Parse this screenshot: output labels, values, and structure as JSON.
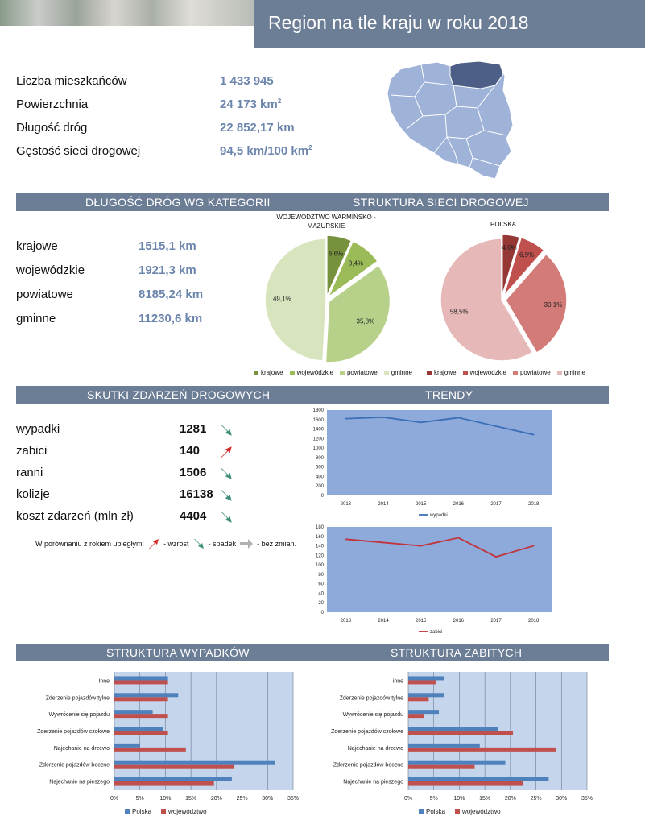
{
  "header": {
    "title": "Region na tle kraju w roku 2018"
  },
  "stats": [
    {
      "label": "Liczba mieszkańców",
      "value": "1 433 945",
      "sup": ""
    },
    {
      "label": "Powierzchnia",
      "value": "24 173 km",
      "sup": "2"
    },
    {
      "label": "Długość dróg",
      "value": "22 852,17 km",
      "sup": ""
    },
    {
      "label": "Gęstość sieci drogowej",
      "value": "94,5 km/100 km",
      "sup": "2"
    }
  ],
  "sections": {
    "roads_by_category": "DŁUGOŚĆ DRÓG WG KATEGORII",
    "network_structure": "STRUKTURA SIECI DROGOWEJ",
    "accident_effects": "SKUTKI ZDARZEŃ DROGOWYCH",
    "trends": "TRENDY",
    "accident_structure": "STRUKTURA WYPADKÓW",
    "fatality_structure": "STRUKTURA ZABITYCH"
  },
  "roads": [
    {
      "label": "krajowe",
      "value": "1515,1 km"
    },
    {
      "label": "wojewódzkie",
      "value": "1921,3 km"
    },
    {
      "label": "powiatowe",
      "value": "8185,24 km"
    },
    {
      "label": "gminne",
      "value": "11230,6 km"
    }
  ],
  "accidents": [
    {
      "label": "wypadki",
      "value": "1281",
      "trend": "spadek"
    },
    {
      "label": "zabici",
      "value": "140",
      "trend": "wzrost"
    },
    {
      "label": "ranni",
      "value": "1506",
      "trend": "spadek"
    },
    {
      "label": "kolizje",
      "value": "16138",
      "trend": "spadek"
    },
    {
      "label": "koszt zdarzeń (mln zł)",
      "value": "4404",
      "trend": "spadek"
    }
  ],
  "trend_legend": {
    "prefix": "W porównaniu z rokiem ubiegłym:",
    "up": "- wzrost",
    "down": "- spadek",
    "same": "- bez zmian."
  },
  "colors": {
    "band": "#6c7d96",
    "value_blue": "#6b85ad",
    "map_fill": "#9fb3d9",
    "map_highlight": "#4d5f86",
    "chart_bg": "#8eaadb",
    "line_blue": "#3b6fb6",
    "line_red": "#c0343a",
    "arrow_down": "#3f8f7a",
    "arrow_up": "#d42a2a",
    "arrow_same": "#b0b0b0",
    "bar_blue": "#4f81bd",
    "bar_red": "#c0504d",
    "bar_bg": "#c5d5ec"
  },
  "chart_data": [
    {
      "type": "pie",
      "title": "WOJEWÓDZTWO WARMIŃSKO - MAZURSKIE",
      "categories": [
        "krajowe",
        "wojewódzkie",
        "powiatowe",
        "gminne"
      ],
      "values": [
        6.6,
        8.4,
        35.8,
        49.1
      ],
      "labels": [
        "6,6%",
        "8,4%",
        "35,8%",
        "49,1%"
      ],
      "colors": [
        "#76923c",
        "#9bbb59",
        "#b7d18b",
        "#d7e4bd"
      ],
      "legend": "bottom"
    },
    {
      "type": "pie",
      "title": "POLSKA",
      "categories": [
        "krajowe",
        "wojewódzkie",
        "powiatowe",
        "gminne"
      ],
      "values": [
        4.6,
        6.9,
        30.1,
        58.5
      ],
      "labels": [
        "4,6%",
        "6,9%",
        "30,1%",
        "58,5%"
      ],
      "colors": [
        "#953735",
        "#c0504d",
        "#d27b78",
        "#e6b9b8"
      ],
      "legend": "bottom"
    },
    {
      "type": "line",
      "x": [
        "2013",
        "2014",
        "2015",
        "2016",
        "2017",
        "2018"
      ],
      "series": [
        {
          "name": "wypadki",
          "values": [
            1620,
            1650,
            1540,
            1640,
            1460,
            1281
          ]
        }
      ],
      "ylim": [
        0,
        1800
      ],
      "yticks": [
        "0",
        "200",
        "400",
        "600",
        "800",
        "1000",
        "1200",
        "1400",
        "1600",
        "1800"
      ],
      "legend": "bottom"
    },
    {
      "type": "line",
      "x": [
        "2013",
        "2014",
        "2015",
        "2016",
        "2017",
        "2018"
      ],
      "series": [
        {
          "name": "zabici",
          "values": [
            154,
            147,
            140,
            157,
            117,
            140
          ]
        }
      ],
      "ylim": [
        0,
        180
      ],
      "yticks": [
        "0",
        "20",
        "40",
        "60",
        "80",
        "100",
        "120",
        "140",
        "160",
        "180"
      ],
      "legend": "bottom"
    },
    {
      "type": "bar",
      "orientation": "horizontal",
      "categories": [
        "Inne",
        "Zderzenie pojazdów tylne",
        "Wywrócenie się pojazdu",
        "Zderzenie pojazdów czołowe",
        "Najechanie na drzewo",
        "Zderzenie pojazdów boczne",
        "Najechanie na pieszego"
      ],
      "series": [
        {
          "name": "Polska",
          "values": [
            10.5,
            12.5,
            7.5,
            9.5,
            5,
            31.5,
            23
          ]
        },
        {
          "name": "województwo",
          "values": [
            10.5,
            10.5,
            10.5,
            10.5,
            14,
            23.5,
            19.5
          ]
        }
      ],
      "xlim": [
        0,
        35
      ],
      "xticks": [
        "0%",
        "5%",
        "10%",
        "15%",
        "20%",
        "25%",
        "30%",
        "35%"
      ],
      "legend": "bottom"
    },
    {
      "type": "bar",
      "orientation": "horizontal",
      "categories": [
        "inne",
        "Zderzenie pojazdów tylne",
        "Wywrócenie się pojazdu",
        "Zderzenie pojazdów czołowe",
        "Najechanie na drzewo",
        "Zderzenie pojazdów boczne",
        "Najechanie na pieszego"
      ],
      "series": [
        {
          "name": "Polska",
          "values": [
            7,
            7,
            6,
            17.5,
            14,
            19,
            27.5
          ]
        },
        {
          "name": "województwo",
          "values": [
            5.5,
            4,
            3,
            20.5,
            29,
            13,
            22.5
          ]
        }
      ],
      "xlim": [
        0,
        35
      ],
      "xticks": [
        "0%",
        "5%",
        "10%",
        "15%",
        "20%",
        "25%",
        "30%",
        "35%"
      ],
      "legend": "bottom"
    }
  ]
}
